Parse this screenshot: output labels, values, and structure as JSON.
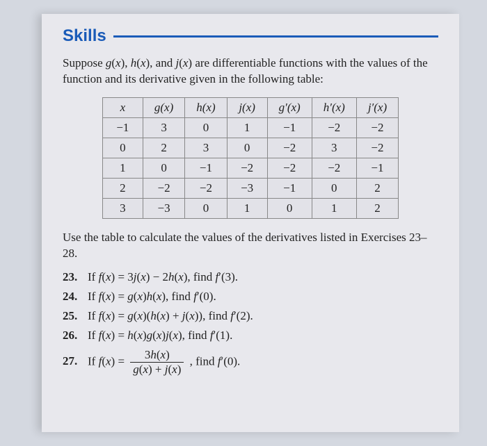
{
  "header": {
    "title": "Skills"
  },
  "intro": {
    "text_html": "Suppose <span class='fnname'>g</span>(<span class='fnname'>x</span>), <span class='fnname'>h</span>(<span class='fnname'>x</span>), and <span class='fnname'>j</span>(<span class='fnname'>x</span>) are differentiable functions with the values of the function and its derivative given in the following table:"
  },
  "table": {
    "columns": [
      "x",
      "g(x)",
      "h(x)",
      "j(x)",
      "g′(x)",
      "h′(x)",
      "j′(x)"
    ],
    "rows": [
      [
        "−1",
        "3",
        "0",
        "1",
        "−1",
        "−2",
        "−2"
      ],
      [
        "0",
        "2",
        "3",
        "0",
        "−2",
        "3",
        "−2"
      ],
      [
        "1",
        "0",
        "−1",
        "−2",
        "−2",
        "−2",
        "−1"
      ],
      [
        "2",
        "−2",
        "−2",
        "−3",
        "−1",
        "0",
        "2"
      ],
      [
        "3",
        "−3",
        "0",
        "1",
        "0",
        "1",
        "2"
      ]
    ],
    "border_color": "#888",
    "cell_bg": "#e2e2e8",
    "text_color": "#222"
  },
  "instruction": {
    "text": "Use the table to calculate the values of the derivatives listed in Exercises 23–28."
  },
  "exercises": [
    {
      "num": "23.",
      "body_html": "If <span class='fnname'>f</span>(<span class='fnname'>x</span>) = 3<span class='fnname'>j</span>(<span class='fnname'>x</span>) − 2<span class='fnname'>h</span>(<span class='fnname'>x</span>), find <span class='fnname'>f</span>′(3)."
    },
    {
      "num": "24.",
      "body_html": "If <span class='fnname'>f</span>(<span class='fnname'>x</span>) = <span class='fnname'>g</span>(<span class='fnname'>x</span>)<span class='fnname'>h</span>(<span class='fnname'>x</span>), find <span class='fnname'>f</span>′(0)."
    },
    {
      "num": "25.",
      "body_html": "If <span class='fnname'>f</span>(<span class='fnname'>x</span>) = <span class='fnname'>g</span>(<span class='fnname'>x</span>)(<span class='fnname'>h</span>(<span class='fnname'>x</span>) + <span class='fnname'>j</span>(<span class='fnname'>x</span>)), find <span class='fnname'>f</span>′(2)."
    },
    {
      "num": "26.",
      "body_html": "If <span class='fnname'>f</span>(<span class='fnname'>x</span>) = <span class='fnname'>h</span>(<span class='fnname'>x</span>)<span class='fnname'>g</span>(<span class='fnname'>x</span>)<span class='fnname'>j</span>(<span class='fnname'>x</span>), find <span class='fnname'>f</span>′(1)."
    },
    {
      "num": "27.",
      "body_html": "If <span class='fnname'>f</span>(<span class='fnname'>x</span>) = <span class='frac'><span class='num'>3<span class='fnname'>h</span>(<span class='fnname'>x</span>)</span><span class='den'><span class='fnname'>g</span>(<span class='fnname'>x</span>) + <span class='fnname'>j</span>(<span class='fnname'>x</span>)</span></span> , find <span class='fnname'>f</span>′(0)."
    }
  ],
  "colors": {
    "heading": "#1a5bb8",
    "page_bg": "#e8e8ed",
    "outer_bg": "#d4d8e0",
    "text": "#222"
  }
}
